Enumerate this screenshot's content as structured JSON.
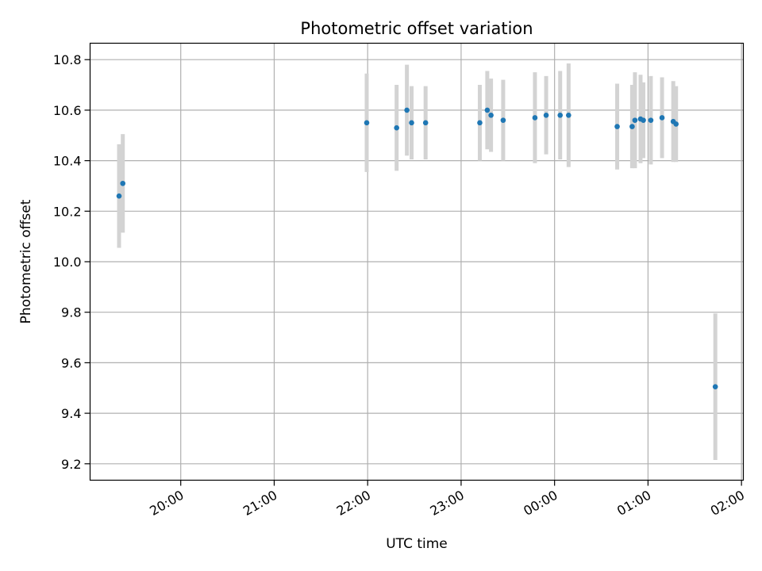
{
  "chart_data": {
    "type": "scatter",
    "title": "Photometric offset variation",
    "xlabel": "UTC time",
    "ylabel": "Photometric offset",
    "x_unit": "hours since 00:00 UTC (negative = previous day)",
    "xlim": [
      -4.97,
      2.02
    ],
    "ylim": [
      9.135,
      10.865
    ],
    "xticks": [
      {
        "value": -4,
        "label": "20:00"
      },
      {
        "value": -3,
        "label": "21:00"
      },
      {
        "value": -2,
        "label": "22:00"
      },
      {
        "value": -1,
        "label": "23:00"
      },
      {
        "value": 0,
        "label": "00:00"
      },
      {
        "value": 1,
        "label": "01:00"
      },
      {
        "value": 2,
        "label": "02:00"
      }
    ],
    "yticks": [
      9.2,
      9.4,
      9.6,
      9.8,
      10.0,
      10.2,
      10.4,
      10.6,
      10.8
    ],
    "grid": true,
    "marker_color": "#1f77b4",
    "errorbar_color": "#d3d3d3",
    "points": [
      {
        "x": -4.66,
        "y": 10.26,
        "err": 0.205
      },
      {
        "x": -4.62,
        "y": 10.31,
        "err": 0.195
      },
      {
        "x": -2.01,
        "y": 10.55,
        "err": 0.195
      },
      {
        "x": -1.69,
        "y": 10.53,
        "err": 0.17
      },
      {
        "x": -1.58,
        "y": 10.6,
        "err": 0.18
      },
      {
        "x": -1.53,
        "y": 10.55,
        "err": 0.145
      },
      {
        "x": -1.38,
        "y": 10.55,
        "err": 0.145
      },
      {
        "x": -0.8,
        "y": 10.55,
        "err": 0.15
      },
      {
        "x": -0.72,
        "y": 10.6,
        "err": 0.155
      },
      {
        "x": -0.68,
        "y": 10.58,
        "err": 0.145
      },
      {
        "x": -0.55,
        "y": 10.56,
        "err": 0.16
      },
      {
        "x": -0.21,
        "y": 10.57,
        "err": 0.18
      },
      {
        "x": -0.09,
        "y": 10.58,
        "err": 0.155
      },
      {
        "x": 0.06,
        "y": 10.58,
        "err": 0.175
      },
      {
        "x": 0.15,
        "y": 10.58,
        "err": 0.205
      },
      {
        "x": 0.67,
        "y": 10.535,
        "err": 0.17
      },
      {
        "x": 0.83,
        "y": 10.535,
        "err": 0.165
      },
      {
        "x": 0.86,
        "y": 10.56,
        "err": 0.19
      },
      {
        "x": 0.92,
        "y": 10.565,
        "err": 0.175
      },
      {
        "x": 0.95,
        "y": 10.56,
        "err": 0.15
      },
      {
        "x": 1.03,
        "y": 10.56,
        "err": 0.175
      },
      {
        "x": 1.15,
        "y": 10.57,
        "err": 0.16
      },
      {
        "x": 1.27,
        "y": 10.555,
        "err": 0.16
      },
      {
        "x": 1.3,
        "y": 10.545,
        "err": 0.15
      },
      {
        "x": 1.72,
        "y": 9.505,
        "err": 0.29
      }
    ]
  }
}
